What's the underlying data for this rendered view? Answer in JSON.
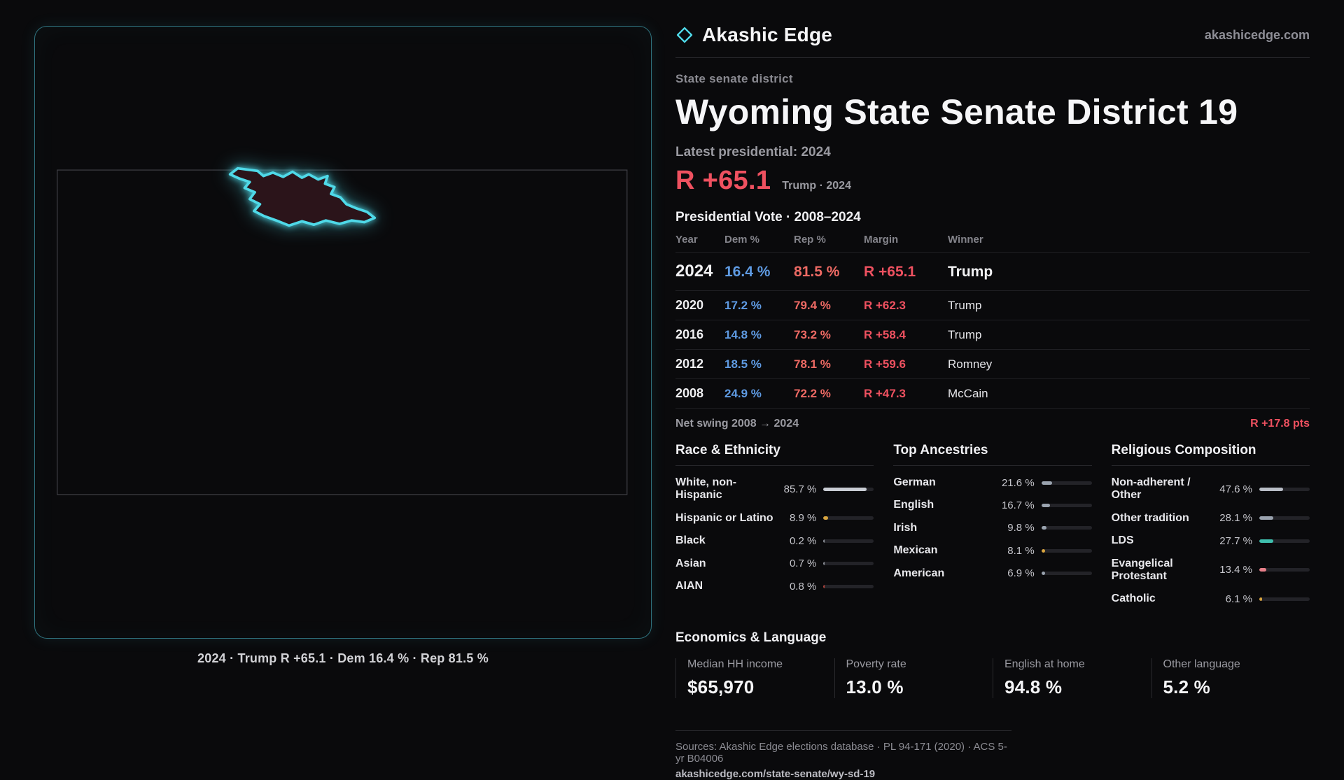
{
  "accent": {
    "red": "#ef5160",
    "blue": "#5f9be3",
    "cyan": "#4fd9e8"
  },
  "brand": {
    "name": "Akashic Edge",
    "site": "akashicedge.com"
  },
  "map_panel": {
    "caption": "2024 · Trump  R +65.1 · Dem 16.4 % · Rep 81.5 %"
  },
  "overview": {
    "kicker": "State senate district",
    "title": "Wyoming State Senate District 19",
    "latest_label": "Latest presidential: 2024",
    "headline_margin": "R +65.1",
    "headline_context": "Trump · 2024"
  },
  "vote_table": {
    "title": "Presidential Vote · 2008–2024",
    "columns": [
      "Year",
      "Dem %",
      "Rep %",
      "Margin",
      "Winner"
    ],
    "rows": [
      {
        "year": "2024",
        "dem": "16.4 %",
        "rep": "81.5 %",
        "margin": "R +65.1",
        "winner": "Trump"
      },
      {
        "year": "2020",
        "dem": "17.2 %",
        "rep": "79.4 %",
        "margin": "R +62.3",
        "winner": "Trump"
      },
      {
        "year": "2016",
        "dem": "14.8 %",
        "rep": "73.2 %",
        "margin": "R +58.4",
        "winner": "Trump"
      },
      {
        "year": "2012",
        "dem": "18.5 %",
        "rep": "78.1 %",
        "margin": "R +59.6",
        "winner": "Romney"
      },
      {
        "year": "2008",
        "dem": "24.9 %",
        "rep": "72.2 %",
        "margin": "R +47.3",
        "winner": "McCain"
      }
    ]
  },
  "net_swing": {
    "label": "Net swing 2008 → 2024",
    "value": "R +17.8 pts"
  },
  "demographics": {
    "race": {
      "title": "Race & Ethnicity",
      "rows": [
        {
          "label": "White, non-Hispanic",
          "value": "85.7 %",
          "bar": {
            "percent": 85.7,
            "color": "#c9cdd4"
          }
        },
        {
          "label": "Hispanic or Latino",
          "value": "8.9 %",
          "bar": {
            "percent": 8.9,
            "color": "#d9a53f"
          }
        },
        {
          "label": "Black",
          "value": "0.2 %",
          "bar": {
            "percent": 1.5,
            "color": "#8f939b"
          }
        },
        {
          "label": "Asian",
          "value": "0.7 %",
          "bar": {
            "percent": 2,
            "color": "#8f939b"
          }
        },
        {
          "label": "AIAN",
          "value": "0.8 %",
          "bar": {
            "percent": 2.5,
            "color": "#b5443c"
          }
        }
      ]
    },
    "ancestries": {
      "title": "Top Ancestries",
      "rows": [
        {
          "label": "German",
          "value": "21.6 %",
          "bar": {
            "percent": 21.6,
            "color": "#9aa3af"
          }
        },
        {
          "label": "English",
          "value": "16.7 %",
          "bar": {
            "percent": 16.7,
            "color": "#9aa3af"
          }
        },
        {
          "label": "Irish",
          "value": "9.8 %",
          "bar": {
            "percent": 9.8,
            "color": "#9aa3af"
          }
        },
        {
          "label": "Mexican",
          "value": "8.1 %",
          "bar": {
            "percent": 8.1,
            "color": "#d9a53f"
          }
        },
        {
          "label": "American",
          "value": "6.9 %",
          "bar": {
            "percent": 6.9,
            "color": "#9aa3af"
          }
        }
      ]
    },
    "religion": {
      "title": "Religious Composition",
      "rows": [
        {
          "label": "Non-adherent / Other",
          "value": "47.6 %",
          "bar": {
            "percent": 47.6,
            "color": "#b9bec7"
          }
        },
        {
          "label": "Other tradition",
          "value": "28.1 %",
          "bar": {
            "percent": 28.1,
            "color": "#9aa3af"
          }
        },
        {
          "label": "LDS",
          "value": "27.7 %",
          "bar": {
            "percent": 27.7,
            "color": "#3fbfae"
          }
        },
        {
          "label": "Evangelical Protestant",
          "value": "13.4 %",
          "bar": {
            "percent": 13.4,
            "color": "#e8808a"
          }
        },
        {
          "label": "Catholic",
          "value": "6.1 %",
          "bar": {
            "percent": 6.1,
            "color": "#d9a53f"
          }
        }
      ]
    }
  },
  "economics": {
    "title": "Economics & Language",
    "stats": [
      {
        "label": "Median HH income",
        "value": "$65,970"
      },
      {
        "label": "Poverty rate",
        "value": "13.0 %"
      },
      {
        "label": "English at home",
        "value": "94.8 %"
      },
      {
        "label": "Other language",
        "value": "5.2 %"
      }
    ]
  },
  "footer": {
    "sources": "Sources: Akashic Edge elections database · PL 94-171 (2020) · ACS 5-yr B04006",
    "url": "akashicedge.com/state-senate/wy-sd-19"
  },
  "chart_data": [
    {
      "type": "table",
      "title": "Presidential Vote · 2008–2024",
      "columns": [
        "Year",
        "Dem %",
        "Rep %",
        "Margin",
        "Winner"
      ],
      "rows": [
        [
          "2024",
          16.4,
          81.5,
          "R +65.1",
          "Trump"
        ],
        [
          "2020",
          17.2,
          79.4,
          "R +62.3",
          "Trump"
        ],
        [
          "2016",
          14.8,
          73.2,
          "R +58.4",
          "Trump"
        ],
        [
          "2012",
          18.5,
          78.1,
          "R +59.6",
          "Romney"
        ],
        [
          "2008",
          24.9,
          72.2,
          "R +47.3",
          "McCain"
        ]
      ],
      "annotations": [
        "Net swing 2008 → 2024: R +17.8 pts",
        "Latest presidential 2024: R +65.1 (Trump)"
      ]
    },
    {
      "type": "bar",
      "title": "Race & Ethnicity",
      "categories": [
        "White, non-Hispanic",
        "Hispanic or Latino",
        "Black",
        "Asian",
        "AIAN"
      ],
      "values": [
        85.7,
        8.9,
        0.2,
        0.7,
        0.8
      ],
      "unit": "%"
    },
    {
      "type": "bar",
      "title": "Top Ancestries",
      "categories": [
        "German",
        "English",
        "Irish",
        "Mexican",
        "American"
      ],
      "values": [
        21.6,
        16.7,
        9.8,
        8.1,
        6.9
      ],
      "unit": "%"
    },
    {
      "type": "bar",
      "title": "Religious Composition",
      "categories": [
        "Non-adherent / Other",
        "Other tradition",
        "LDS",
        "Evangelical Protestant",
        "Catholic"
      ],
      "values": [
        47.6,
        28.1,
        27.7,
        13.4,
        6.1
      ],
      "unit": "%"
    },
    {
      "type": "table",
      "title": "Economics & Language",
      "columns": [
        "Median HH income",
        "Poverty rate",
        "English at home",
        "Other language"
      ],
      "rows": [
        [
          "$65,970",
          "13.0 %",
          "94.8 %",
          "5.2 %"
        ]
      ]
    }
  ]
}
